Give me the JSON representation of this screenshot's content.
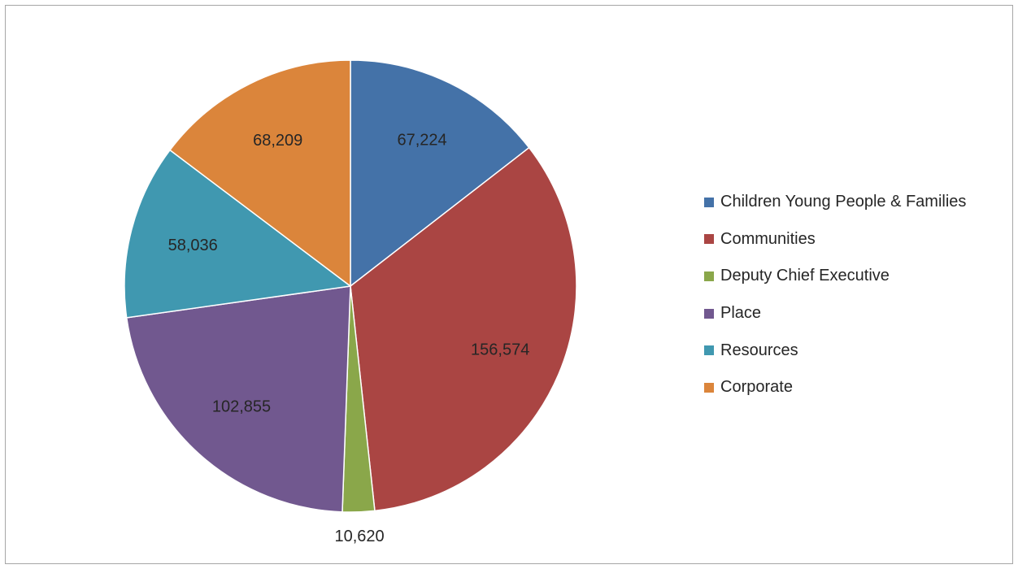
{
  "chart_data": {
    "type": "pie",
    "title": "",
    "categories": [
      "Children Young People & Families",
      "Communities",
      "Deputy Chief Executive",
      "Place",
      "Resources",
      "Corporate"
    ],
    "values": [
      67224,
      156574,
      10620,
      102855,
      58036,
      68209
    ],
    "labels": [
      "67,224",
      "156,574",
      "10,620",
      "102,855",
      "58,036",
      "68,209"
    ],
    "colors": [
      "#4472a8",
      "#aa4543",
      "#8aa74a",
      "#71588f",
      "#4098b0",
      "#db853b"
    ],
    "start_angle": "12 o'clock",
    "direction": "clockwise",
    "legend_position": "right",
    "data_labels": true
  }
}
